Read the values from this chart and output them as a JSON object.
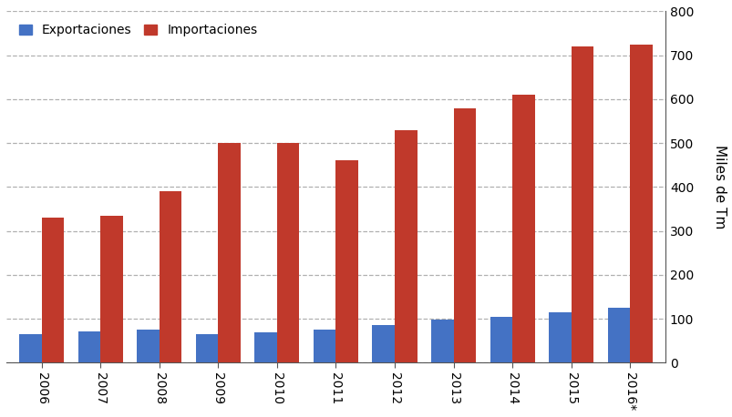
{
  "years": [
    "2006",
    "2007",
    "2008",
    "2009",
    "2010",
    "2011",
    "2012",
    "2013",
    "2014",
    "2015",
    "2016*"
  ],
  "exportaciones": [
    65,
    72,
    75,
    65,
    70,
    75,
    85,
    98,
    105,
    115,
    125
  ],
  "importaciones": [
    330,
    335,
    390,
    500,
    500,
    460,
    530,
    580,
    610,
    720,
    725
  ],
  "bar_color_exp": "#4472c4",
  "bar_color_imp": "#c0392b",
  "ylabel": "Miles de Tm",
  "ylim": [
    0,
    800
  ],
  "yticks": [
    0,
    100,
    200,
    300,
    400,
    500,
    600,
    700,
    800
  ],
  "legend_exp": "Exportaciones",
  "legend_imp": "Importaciones",
  "background_color": "#ffffff",
  "grid_color": "#b0b0b0",
  "bar_width": 0.38,
  "figwidth": 8.04,
  "figheight": 4.58,
  "dpi": 100
}
